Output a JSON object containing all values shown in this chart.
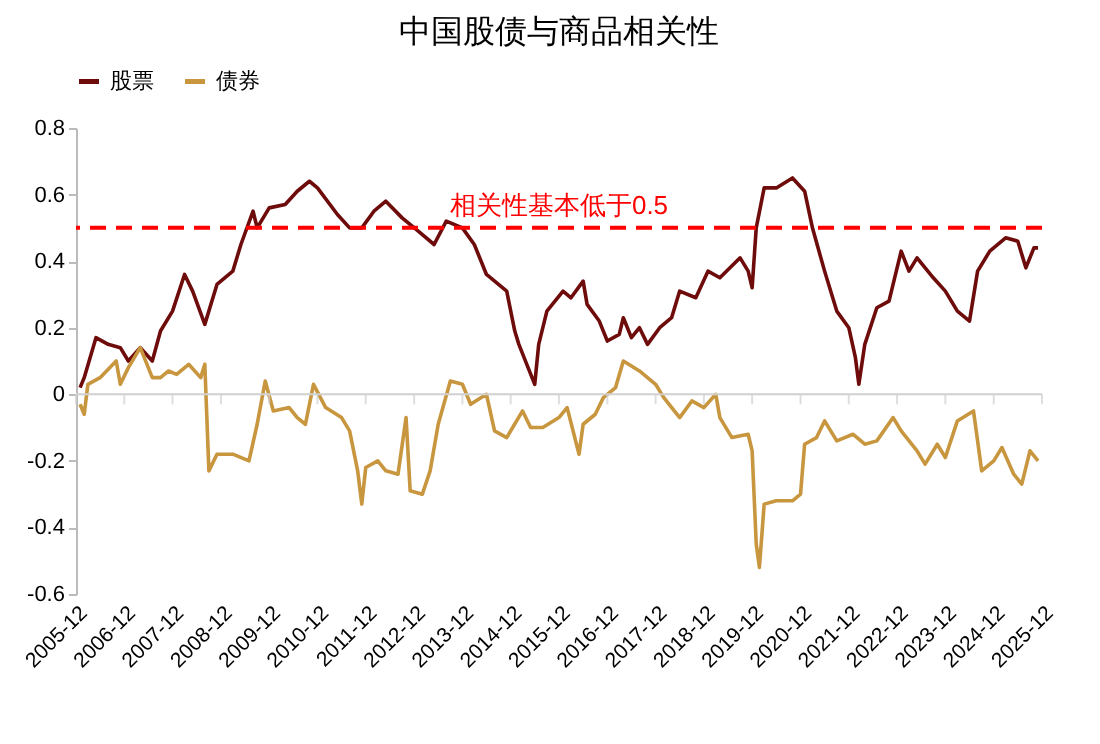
{
  "chart_data": {
    "type": "line",
    "title": "中国股债与商品相关性",
    "legend": "top",
    "xlim": [
      "2005-12",
      "2025-12"
    ],
    "xticks": [
      "2005-12",
      "2006-12",
      "2007-12",
      "2008-12",
      "2009-12",
      "2010-12",
      "2011-12",
      "2012-12",
      "2013-12",
      "2014-12",
      "2015-12",
      "2016-12",
      "2017-12",
      "2018-12",
      "2019-12",
      "2020-12",
      "2021-12",
      "2022-12",
      "2023-12",
      "2024-12",
      "2025-12"
    ],
    "ylim": [
      -0.6,
      0.8
    ],
    "yticks": [
      -0.6,
      -0.4,
      -0.2,
      0,
      0.2,
      0.4,
      0.6,
      0.8
    ],
    "ref_lines": [
      {
        "axis": "y",
        "value": 0.5,
        "label": "相关性基本低于0.5",
        "color": "#ff0000",
        "line_style": "dashed"
      }
    ],
    "series": [
      {
        "name": "股票",
        "color": "#6e0b0b",
        "x": [
          "2006-01",
          "2006-02",
          "2006-05",
          "2006-08",
          "2006-11",
          "2007-01",
          "2007-04",
          "2007-07",
          "2007-09",
          "2007-12",
          "2008-03",
          "2008-05",
          "2008-08",
          "2008-11",
          "2009-03",
          "2009-05",
          "2009-08",
          "2009-09",
          "2009-12",
          "2010-04",
          "2010-07",
          "2010-10",
          "2010-12",
          "2011-05",
          "2011-08",
          "2011-11",
          "2012-02",
          "2012-05",
          "2012-09",
          "2013-01",
          "2013-05",
          "2013-08",
          "2013-12",
          "2014-03",
          "2014-06",
          "2014-11",
          "2015-01",
          "2015-02",
          "2015-06",
          "2015-07",
          "2015-09",
          "2016-01",
          "2016-03",
          "2016-06",
          "2016-07",
          "2016-10",
          "2016-12",
          "2017-03",
          "2017-04",
          "2017-06",
          "2017-08",
          "2017-10",
          "2018-01",
          "2018-04",
          "2018-06",
          "2018-10",
          "2019-01",
          "2019-04",
          "2019-09",
          "2019-11",
          "2019-12",
          "2020-01",
          "2020-03",
          "2020-06",
          "2020-10",
          "2021-01",
          "2021-03",
          "2021-06",
          "2021-09",
          "2021-12",
          "2022-01-20",
          "2022-02-15",
          "2022-04",
          "2022-07",
          "2022-10",
          "2023-01",
          "2023-03",
          "2023-05",
          "2023-09",
          "2023-12",
          "2024-03",
          "2024-06",
          "2024-08",
          "2024-11",
          "2025-03",
          "2025-06",
          "2025-08",
          "2025-10",
          "2025-11"
        ],
        "values": [
          0.02,
          0.05,
          0.17,
          0.15,
          0.14,
          0.1,
          0.14,
          0.1,
          0.19,
          0.25,
          0.36,
          0.31,
          0.21,
          0.33,
          0.37,
          0.45,
          0.55,
          0.5,
          0.56,
          0.57,
          0.61,
          0.64,
          0.62,
          0.54,
          0.5,
          0.5,
          0.55,
          0.58,
          0.53,
          0.49,
          0.45,
          0.52,
          0.5,
          0.45,
          0.36,
          0.31,
          0.19,
          0.15,
          0.03,
          0.15,
          0.25,
          0.31,
          0.29,
          0.34,
          0.27,
          0.22,
          0.16,
          0.18,
          0.23,
          0.17,
          0.2,
          0.15,
          0.2,
          0.23,
          0.31,
          0.29,
          0.37,
          0.35,
          0.41,
          0.37,
          0.32,
          0.5,
          0.62,
          0.62,
          0.65,
          0.61,
          0.5,
          0.37,
          0.25,
          0.2,
          0.11,
          0.03,
          0.15,
          0.26,
          0.28,
          0.43,
          0.37,
          0.41,
          0.35,
          0.31,
          0.25,
          0.22,
          0.37,
          0.43,
          0.47,
          0.46,
          0.38,
          0.44,
          0.44
        ]
      },
      {
        "name": "债券",
        "color": "#c8963e",
        "x": [
          "2006-01",
          "2006-02",
          "2006-03",
          "2006-06",
          "2006-10",
          "2006-11",
          "2007-01",
          "2007-04",
          "2007-07",
          "2007-09",
          "2007-11",
          "2008-01",
          "2008-04",
          "2008-07",
          "2008-08",
          "2008-09",
          "2008-11",
          "2009-03",
          "2009-07",
          "2009-09",
          "2009-11",
          "2010-01",
          "2010-05",
          "2010-07",
          "2010-09",
          "2010-11",
          "2011-02",
          "2011-06",
          "2011-08",
          "2011-10",
          "2011-11",
          "2011-12",
          "2012-03",
          "2012-05",
          "2012-08",
          "2012-10",
          "2012-11",
          "2013-02",
          "2013-04",
          "2013-06",
          "2013-09",
          "2013-12",
          "2014-02",
          "2014-06",
          "2014-08",
          "2014-11",
          "2015-03",
          "2015-05",
          "2015-08",
          "2015-12",
          "2016-02",
          "2016-05",
          "2016-06",
          "2016-09",
          "2016-11",
          "2017-02",
          "2017-04",
          "2017-08",
          "2017-12",
          "2018-02",
          "2018-06",
          "2018-09",
          "2018-12",
          "2019-03",
          "2019-04",
          "2019-07",
          "2019-11",
          "2019-12-01",
          "2020-01-01",
          "2020-01-25",
          "2020-03",
          "2020-06",
          "2020-10",
          "2020-12",
          "2021-01",
          "2021-04",
          "2021-06",
          "2021-09",
          "2022-01",
          "2022-04",
          "2022-07",
          "2022-11",
          "2023-01",
          "2023-05",
          "2023-07",
          "2023-10",
          "2023-12",
          "2024-03",
          "2024-07",
          "2024-09",
          "2024-12",
          "2025-02",
          "2025-05",
          "2025-07",
          "2025-09",
          "2025-11"
        ],
        "values": [
          -0.03,
          -0.06,
          0.03,
          0.05,
          0.1,
          0.03,
          0.08,
          0.14,
          0.05,
          0.05,
          0.07,
          0.06,
          0.09,
          0.05,
          0.09,
          -0.23,
          -0.18,
          -0.18,
          -0.2,
          -0.09,
          0.04,
          -0.05,
          -0.04,
          -0.07,
          -0.09,
          0.03,
          -0.04,
          -0.07,
          -0.11,
          -0.23,
          -0.33,
          -0.22,
          -0.2,
          -0.23,
          -0.24,
          -0.07,
          -0.29,
          -0.3,
          -0.23,
          -0.09,
          0.04,
          0.03,
          -0.03,
          0.0,
          -0.11,
          -0.13,
          -0.05,
          -0.1,
          -0.1,
          -0.07,
          -0.04,
          -0.18,
          -0.09,
          -0.06,
          -0.01,
          0.02,
          0.1,
          0.07,
          0.03,
          -0.01,
          -0.07,
          -0.02,
          -0.04,
          0.0,
          -0.07,
          -0.13,
          -0.12,
          -0.17,
          -0.45,
          -0.52,
          -0.33,
          -0.32,
          -0.32,
          -0.3,
          -0.15,
          -0.13,
          -0.08,
          -0.14,
          -0.12,
          -0.15,
          -0.14,
          -0.07,
          -0.11,
          -0.17,
          -0.21,
          -0.15,
          -0.19,
          -0.08,
          -0.05,
          -0.23,
          -0.2,
          -0.16,
          -0.24,
          -0.27,
          -0.17,
          -0.2
        ]
      }
    ]
  }
}
